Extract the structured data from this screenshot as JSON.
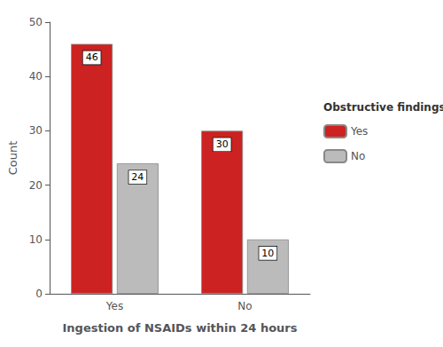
{
  "chart_data": {
    "type": "bar",
    "categories": [
      "Yes",
      "No"
    ],
    "series": [
      {
        "name": "Yes",
        "color": "#CC2222",
        "values": [
          46,
          30
        ]
      },
      {
        "name": "No",
        "color": "#BBBBBB",
        "values": [
          24,
          10
        ]
      }
    ],
    "xlabel": "Ingestion of NSAIDs within 24 hours",
    "ylabel": "Count",
    "ylim": [
      0,
      50
    ],
    "yticks": [
      0,
      10,
      20,
      30,
      40,
      50
    ],
    "legend_title": "Obstructive findings",
    "legend": "right",
    "grid": false,
    "data_labels": true
  }
}
